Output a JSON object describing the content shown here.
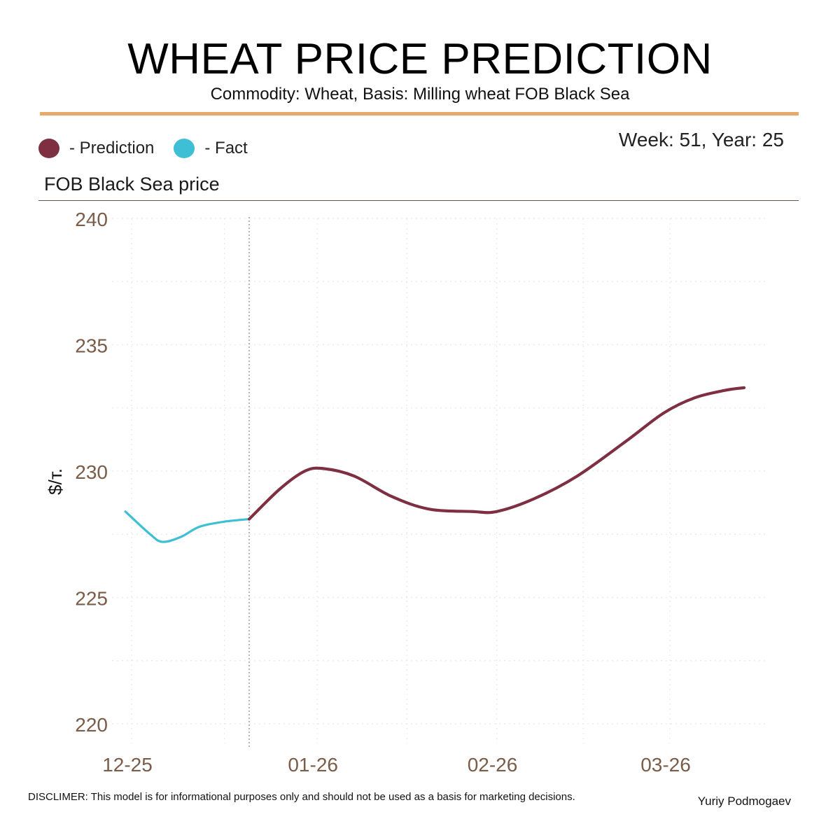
{
  "header": {
    "title": "WHEAT PRICE PREDICTION",
    "subtitle": "Commodity: Wheat, Basis: Milling wheat FOB Black Sea",
    "week_label": "Week: 51, Year: 25"
  },
  "legend": {
    "prediction_label": "- Prediction",
    "fact_label": "- Fact"
  },
  "panel": {
    "title": "FOB Black Sea price"
  },
  "footer": {
    "disclaimer": "DISCLIMER:  This model is for informational purposes only and should not be used as a basis for marketing decisions.",
    "author": "Yuriy Podmogaev"
  },
  "colors": {
    "prediction": "#7e3042",
    "fact": "#3ebfd6",
    "accent": "#e6aa6a",
    "axis_text": "#7a5c48",
    "grid": "#ebebeb",
    "divider": "#b4b4b4"
  },
  "chart_data": {
    "type": "line",
    "title": "FOB Black Sea price",
    "xlabel": "",
    "ylabel": "$/т.",
    "ylim": [
      219.2,
      240.3
    ],
    "yticks": [
      220,
      225,
      230,
      235,
      240
    ],
    "xlim": [
      -3,
      98
    ],
    "xticks": [
      {
        "x": 0,
        "label": "12-25"
      },
      {
        "x": 30,
        "label": "01-26"
      },
      {
        "x": 59,
        "label": "02-26"
      },
      {
        "x": 87,
        "label": "03-26"
      }
    ],
    "forecast_start_x": 19,
    "series": [
      {
        "name": "Fact",
        "points": [
          [
            -1,
            228.4
          ],
          [
            3,
            227.5
          ],
          [
            5,
            227.2
          ],
          [
            8,
            227.4
          ],
          [
            11,
            227.8
          ],
          [
            15,
            228.0
          ],
          [
            19,
            228.1
          ]
        ]
      },
      {
        "name": "Prediction",
        "points": [
          [
            19,
            228.1
          ],
          [
            24,
            229.3
          ],
          [
            28,
            230.0
          ],
          [
            31,
            230.1
          ],
          [
            36,
            229.8
          ],
          [
            42,
            229.0
          ],
          [
            48,
            228.5
          ],
          [
            55,
            228.4
          ],
          [
            59,
            228.4
          ],
          [
            65,
            228.9
          ],
          [
            72,
            229.8
          ],
          [
            80,
            231.2
          ],
          [
            86,
            232.3
          ],
          [
            91,
            232.9
          ],
          [
            96,
            233.2
          ],
          [
            99,
            233.3
          ]
        ]
      }
    ]
  }
}
